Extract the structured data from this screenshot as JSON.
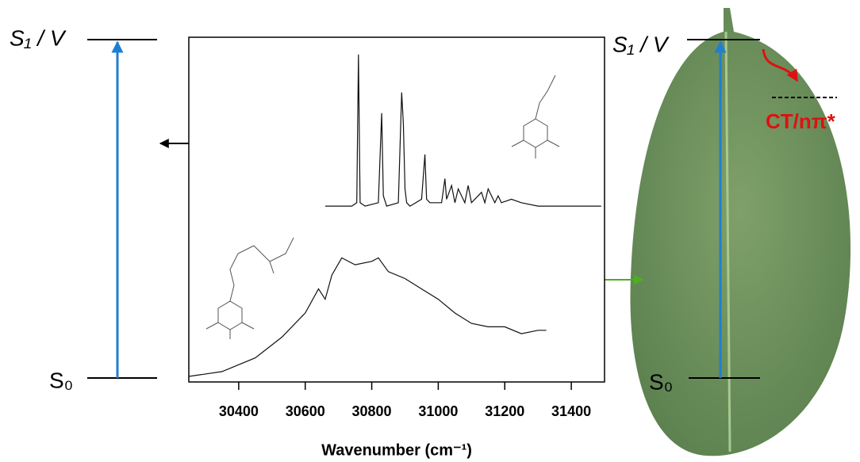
{
  "chart_data": {
    "type": "line",
    "xlabel": "Wavenumber (cm⁻¹)",
    "xlim": [
      30250,
      31500
    ],
    "xticks": [
      30400,
      30600,
      30800,
      31000,
      31200,
      31400
    ],
    "ylim": [
      0,
      1
    ],
    "series": [
      {
        "color": "#111111",
        "x": [
          30660,
          30740,
          30755,
          30760,
          30765,
          30780,
          30820,
          30830,
          30835,
          30845,
          30880,
          30890,
          30895,
          30900,
          30905,
          30915,
          30950,
          30960,
          30965,
          30975,
          31010,
          31020,
          31025,
          31040,
          31050,
          31060,
          31080,
          31090,
          31100,
          31130,
          31140,
          31150,
          31170,
          31180,
          31190,
          31220,
          31250,
          31300,
          31400,
          31490
        ],
        "values": [
          0.51,
          0.51,
          0.52,
          0.95,
          0.52,
          0.51,
          0.52,
          0.78,
          0.54,
          0.51,
          0.52,
          0.84,
          0.75,
          0.56,
          0.52,
          0.51,
          0.53,
          0.66,
          0.53,
          0.52,
          0.52,
          0.59,
          0.53,
          0.57,
          0.52,
          0.56,
          0.52,
          0.57,
          0.52,
          0.55,
          0.52,
          0.56,
          0.52,
          0.54,
          0.52,
          0.53,
          0.52,
          0.51,
          0.51,
          0.51
        ]
      },
      {
        "color": "#111111",
        "x": [
          30250,
          30350,
          30450,
          30530,
          30600,
          30640,
          30660,
          30680,
          30710,
          30750,
          30800,
          30820,
          30850,
          30900,
          30950,
          31000,
          31050,
          31100,
          31150,
          31200,
          31250,
          31300,
          31325
        ],
        "values": [
          0.016,
          0.03,
          0.07,
          0.13,
          0.2,
          0.27,
          0.24,
          0.31,
          0.36,
          0.34,
          0.35,
          0.36,
          0.32,
          0.3,
          0.27,
          0.24,
          0.2,
          0.17,
          0.16,
          0.16,
          0.14,
          0.15,
          0.15
        ]
      }
    ],
    "annotations": {
      "excited_left": "S₁ / V",
      "ground_left": "S₀",
      "excited_right": "S₁ / V",
      "ground_right": "S₀",
      "ct_state": "CT/nπ*"
    }
  }
}
